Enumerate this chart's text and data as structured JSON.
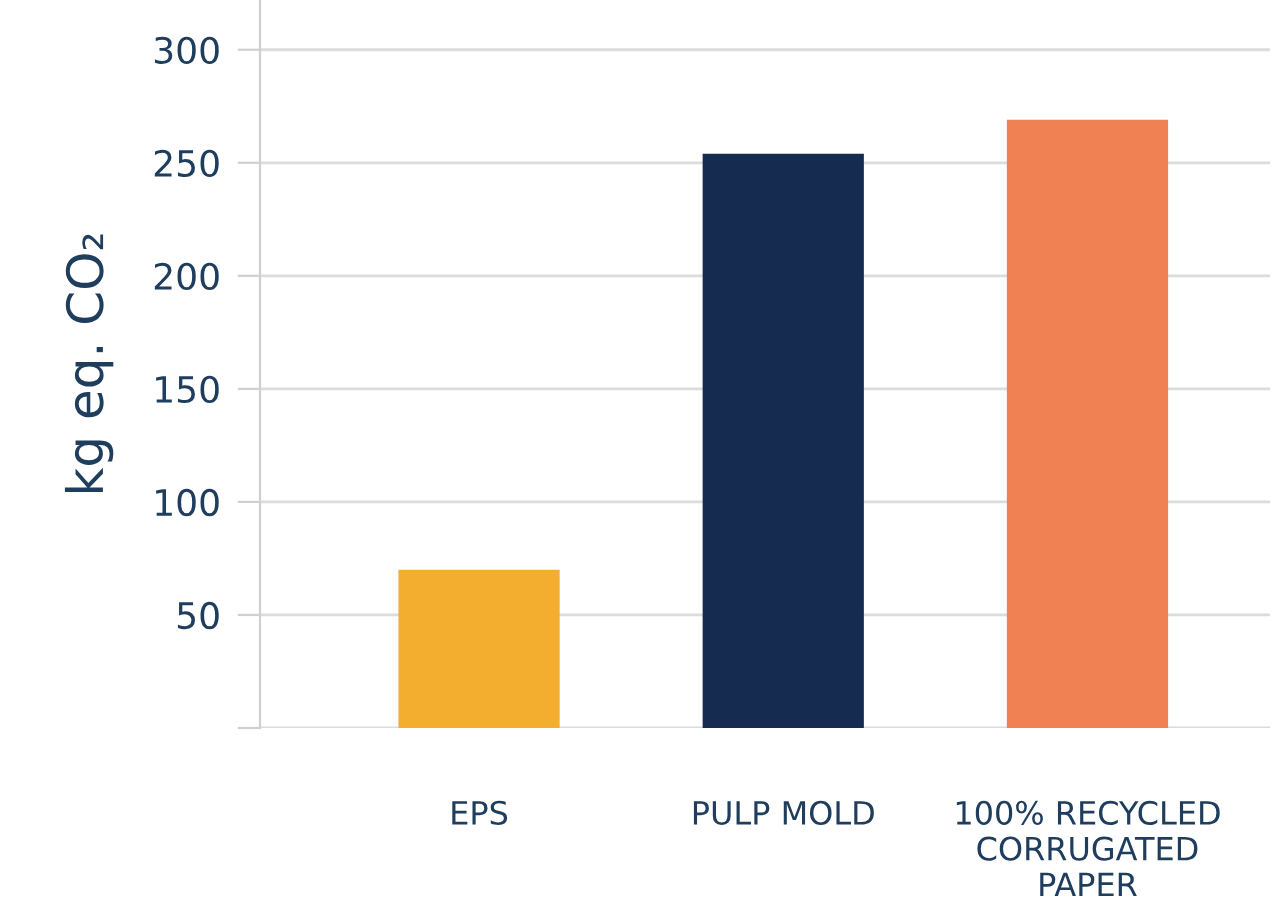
{
  "chart_data": {
    "type": "bar",
    "ylabel": "kg eq. CO₂",
    "categories": [
      "EPS",
      "PULP MOLD",
      "100% RECYCLED\nCORRUGATED\nPAPER"
    ],
    "values": [
      70,
      254,
      269
    ],
    "colors": [
      "#f3ae2f",
      "#152c50",
      "#f08153"
    ],
    "ylim": [
      0,
      322
    ],
    "yticks": [
      {
        "value": 0,
        "label": null
      },
      50,
      100,
      150,
      200,
      250,
      300
    ],
    "grid": "y",
    "legend": false
  }
}
